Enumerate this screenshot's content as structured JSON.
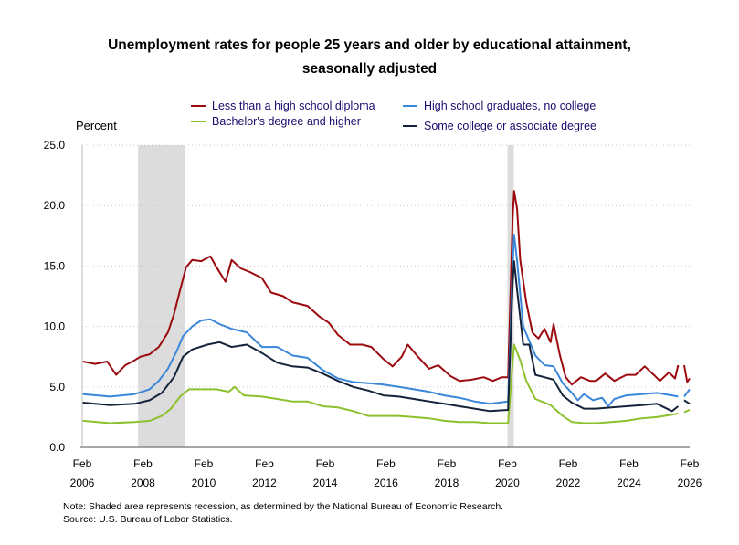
{
  "chart_data": {
    "type": "line",
    "title": "Unemployment rates for people 25 years and older by educational attainment,",
    "subtitle": "seasonally adjusted",
    "ylabel": "Percent",
    "xlabel": "",
    "ylim": [
      0,
      25
    ],
    "xlim": [
      2006.08,
      2026.08
    ],
    "yticks": [
      "0.0",
      "5.0",
      "10.0",
      "15.0",
      "20.0",
      "25.0"
    ],
    "xticks": [
      {
        "month": "Feb",
        "year": "2006",
        "x": 2006.08
      },
      {
        "month": "Feb",
        "year": "2008",
        "x": 2008.08
      },
      {
        "month": "Feb",
        "year": "2010",
        "x": 2010.08
      },
      {
        "month": "Feb",
        "year": "2012",
        "x": 2012.08
      },
      {
        "month": "Feb",
        "year": "2014",
        "x": 2014.08
      },
      {
        "month": "Feb",
        "year": "2016",
        "x": 2016.08
      },
      {
        "month": "Feb",
        "year": "2018",
        "x": 2018.08
      },
      {
        "month": "Feb",
        "year": "2020",
        "x": 2020.08
      },
      {
        "month": "Feb",
        "year": "2022",
        "x": 2022.08
      },
      {
        "month": "Feb",
        "year": "2024",
        "x": 2024.08
      },
      {
        "month": "Feb",
        "year": "2026",
        "x": 2026.08
      }
    ],
    "grid": true,
    "recessions": [
      [
        2007.92,
        2009.46
      ],
      [
        2020.08,
        2020.29
      ]
    ],
    "series": [
      {
        "name": "Less than a high school diploma",
        "color": "#9b0a0f",
        "x": [
          2006.1,
          2006.5,
          2006.9,
          2007.2,
          2007.5,
          2007.8,
          2008.0,
          2008.3,
          2008.6,
          2008.9,
          2009.1,
          2009.3,
          2009.5,
          2009.7,
          2010.0,
          2010.3,
          2010.5,
          2010.8,
          2011.0,
          2011.3,
          2011.6,
          2012.0,
          2012.3,
          2012.7,
          2013.0,
          2013.5,
          2013.9,
          2014.2,
          2014.5,
          2014.9,
          2015.3,
          2015.6,
          2016.0,
          2016.3,
          2016.6,
          2016.8,
          2017.1,
          2017.5,
          2017.8,
          2018.2,
          2018.5,
          2018.9,
          2019.3,
          2019.6,
          2019.9,
          2020.1,
          2020.25,
          2020.3,
          2020.4,
          2020.5,
          2020.7,
          2020.9,
          2021.1,
          2021.3,
          2021.5,
          2021.6,
          2021.8,
          2022.0,
          2022.2,
          2022.5,
          2022.8,
          2023.0,
          2023.3,
          2023.6,
          2024.0,
          2024.3,
          2024.6,
          2024.9,
          2025.1,
          2025.4,
          2025.6,
          2025.7,
          2025.8,
          2025.9,
          2026.0,
          2026.08
        ],
        "y": [
          7.1,
          6.9,
          7.1,
          6.0,
          6.8,
          7.2,
          7.5,
          7.7,
          8.3,
          9.5,
          11.0,
          13.0,
          14.9,
          15.5,
          15.4,
          15.8,
          14.9,
          13.7,
          15.5,
          14.8,
          14.5,
          14.0,
          12.8,
          12.5,
          12.0,
          11.7,
          10.8,
          10.3,
          9.3,
          8.5,
          8.5,
          8.3,
          7.3,
          6.7,
          7.5,
          8.5,
          7.6,
          6.5,
          6.8,
          5.9,
          5.5,
          5.6,
          5.8,
          5.5,
          5.8,
          5.8,
          19.0,
          21.2,
          19.7,
          15.5,
          12.0,
          9.5,
          9.0,
          9.8,
          8.7,
          10.2,
          7.7,
          5.8,
          5.2,
          5.8,
          5.5,
          5.5,
          6.1,
          5.5,
          6.0,
          6.0,
          6.7,
          6.0,
          5.5,
          6.2,
          5.7,
          6.8,
          null,
          6.8,
          5.4,
          5.7
        ]
      },
      {
        "name": "High school graduates, no college",
        "color": "#3a86d8",
        "x": [
          2006.1,
          2007.0,
          2007.8,
          2008.3,
          2008.6,
          2008.9,
          2009.2,
          2009.4,
          2009.7,
          2010.0,
          2010.3,
          2010.6,
          2011.0,
          2011.5,
          2012.0,
          2012.5,
          2013.0,
          2013.5,
          2014.0,
          2014.5,
          2015.0,
          2015.5,
          2016.0,
          2016.5,
          2017.0,
          2017.5,
          2018.0,
          2018.5,
          2019.0,
          2019.5,
          2020.1,
          2020.25,
          2020.3,
          2020.4,
          2020.6,
          2020.8,
          2021.0,
          2021.3,
          2021.6,
          2021.9,
          2022.2,
          2022.4,
          2022.6,
          2022.9,
          2023.2,
          2023.4,
          2023.6,
          2024.0,
          2024.5,
          2025.0,
          2025.5,
          2025.7,
          2025.8,
          2025.9,
          2026.08
        ],
        "y": [
          4.4,
          4.2,
          4.4,
          4.8,
          5.5,
          6.5,
          8.0,
          9.2,
          10.0,
          10.5,
          10.6,
          10.2,
          9.8,
          9.5,
          8.3,
          8.3,
          7.6,
          7.4,
          6.4,
          5.7,
          5.4,
          5.3,
          5.2,
          5.0,
          4.8,
          4.6,
          4.3,
          4.1,
          3.8,
          3.6,
          3.8,
          15.0,
          17.6,
          15.4,
          10.0,
          8.8,
          7.6,
          6.8,
          6.7,
          5.3,
          4.5,
          3.9,
          4.4,
          3.9,
          4.1,
          3.4,
          4.0,
          4.3,
          4.4,
          4.5,
          4.3,
          4.2,
          null,
          4.2,
          4.8
        ]
      },
      {
        "name": "Bachelor's degree and higher",
        "color": "#8dc02d",
        "x": [
          2006.1,
          2007.0,
          2007.8,
          2008.3,
          2008.7,
          2009.0,
          2009.3,
          2009.6,
          2010.0,
          2010.5,
          2010.9,
          2011.1,
          2011.4,
          2012.0,
          2012.5,
          2013.0,
          2013.5,
          2014.0,
          2014.5,
          2015.0,
          2015.5,
          2016.0,
          2016.5,
          2017.0,
          2017.5,
          2018.0,
          2018.5,
          2019.0,
          2019.5,
          2020.1,
          2020.25,
          2020.3,
          2020.5,
          2020.7,
          2021.0,
          2021.5,
          2021.9,
          2022.2,
          2022.6,
          2023.0,
          2023.5,
          2024.0,
          2024.5,
          2025.0,
          2025.5,
          2025.7,
          2025.8,
          2025.9,
          2026.08
        ],
        "y": [
          2.2,
          2.0,
          2.1,
          2.2,
          2.6,
          3.2,
          4.2,
          4.8,
          4.8,
          4.8,
          4.6,
          5.0,
          4.3,
          4.2,
          4.0,
          3.8,
          3.8,
          3.4,
          3.3,
          3.0,
          2.6,
          2.6,
          2.6,
          2.5,
          2.4,
          2.2,
          2.1,
          2.1,
          2.0,
          2.0,
          7.0,
          8.5,
          7.2,
          5.5,
          4.0,
          3.5,
          2.6,
          2.1,
          2.0,
          2.0,
          2.1,
          2.2,
          2.4,
          2.5,
          2.7,
          2.8,
          null,
          2.9,
          3.1
        ]
      },
      {
        "name": "Some college or associate degree",
        "color": "#14233a",
        "x": [
          2006.1,
          2007.0,
          2007.8,
          2008.3,
          2008.7,
          2009.1,
          2009.4,
          2009.7,
          2010.2,
          2010.6,
          2011.0,
          2011.5,
          2012.0,
          2012.5,
          2013.0,
          2013.5,
          2014.0,
          2014.5,
          2015.0,
          2015.5,
          2016.0,
          2016.5,
          2017.0,
          2017.5,
          2018.0,
          2018.5,
          2019.0,
          2019.5,
          2020.1,
          2020.25,
          2020.3,
          2020.4,
          2020.6,
          2020.8,
          2021.0,
          2021.3,
          2021.6,
          2021.9,
          2022.2,
          2022.6,
          2023.0,
          2023.5,
          2024.0,
          2024.5,
          2025.0,
          2025.5,
          2025.7,
          2025.8,
          2025.9,
          2026.08
        ],
        "y": [
          3.7,
          3.5,
          3.6,
          3.9,
          4.5,
          5.8,
          7.5,
          8.1,
          8.5,
          8.7,
          8.3,
          8.5,
          7.8,
          7.0,
          6.7,
          6.6,
          6.1,
          5.5,
          5.0,
          4.7,
          4.3,
          4.2,
          4.0,
          3.8,
          3.6,
          3.4,
          3.2,
          3.0,
          3.1,
          13.5,
          15.4,
          13.0,
          8.5,
          8.5,
          6.0,
          5.8,
          5.6,
          4.3,
          3.7,
          3.2,
          3.2,
          3.3,
          3.4,
          3.5,
          3.6,
          3.0,
          3.4,
          null,
          3.9,
          3.6
        ]
      }
    ],
    "legend": {
      "placement": "top"
    },
    "note": "Note: Shaded area represents recession, as determined by the National Bureau of Economic Research.",
    "source": "Source: U.S. Bureau of Labor Statistics."
  }
}
